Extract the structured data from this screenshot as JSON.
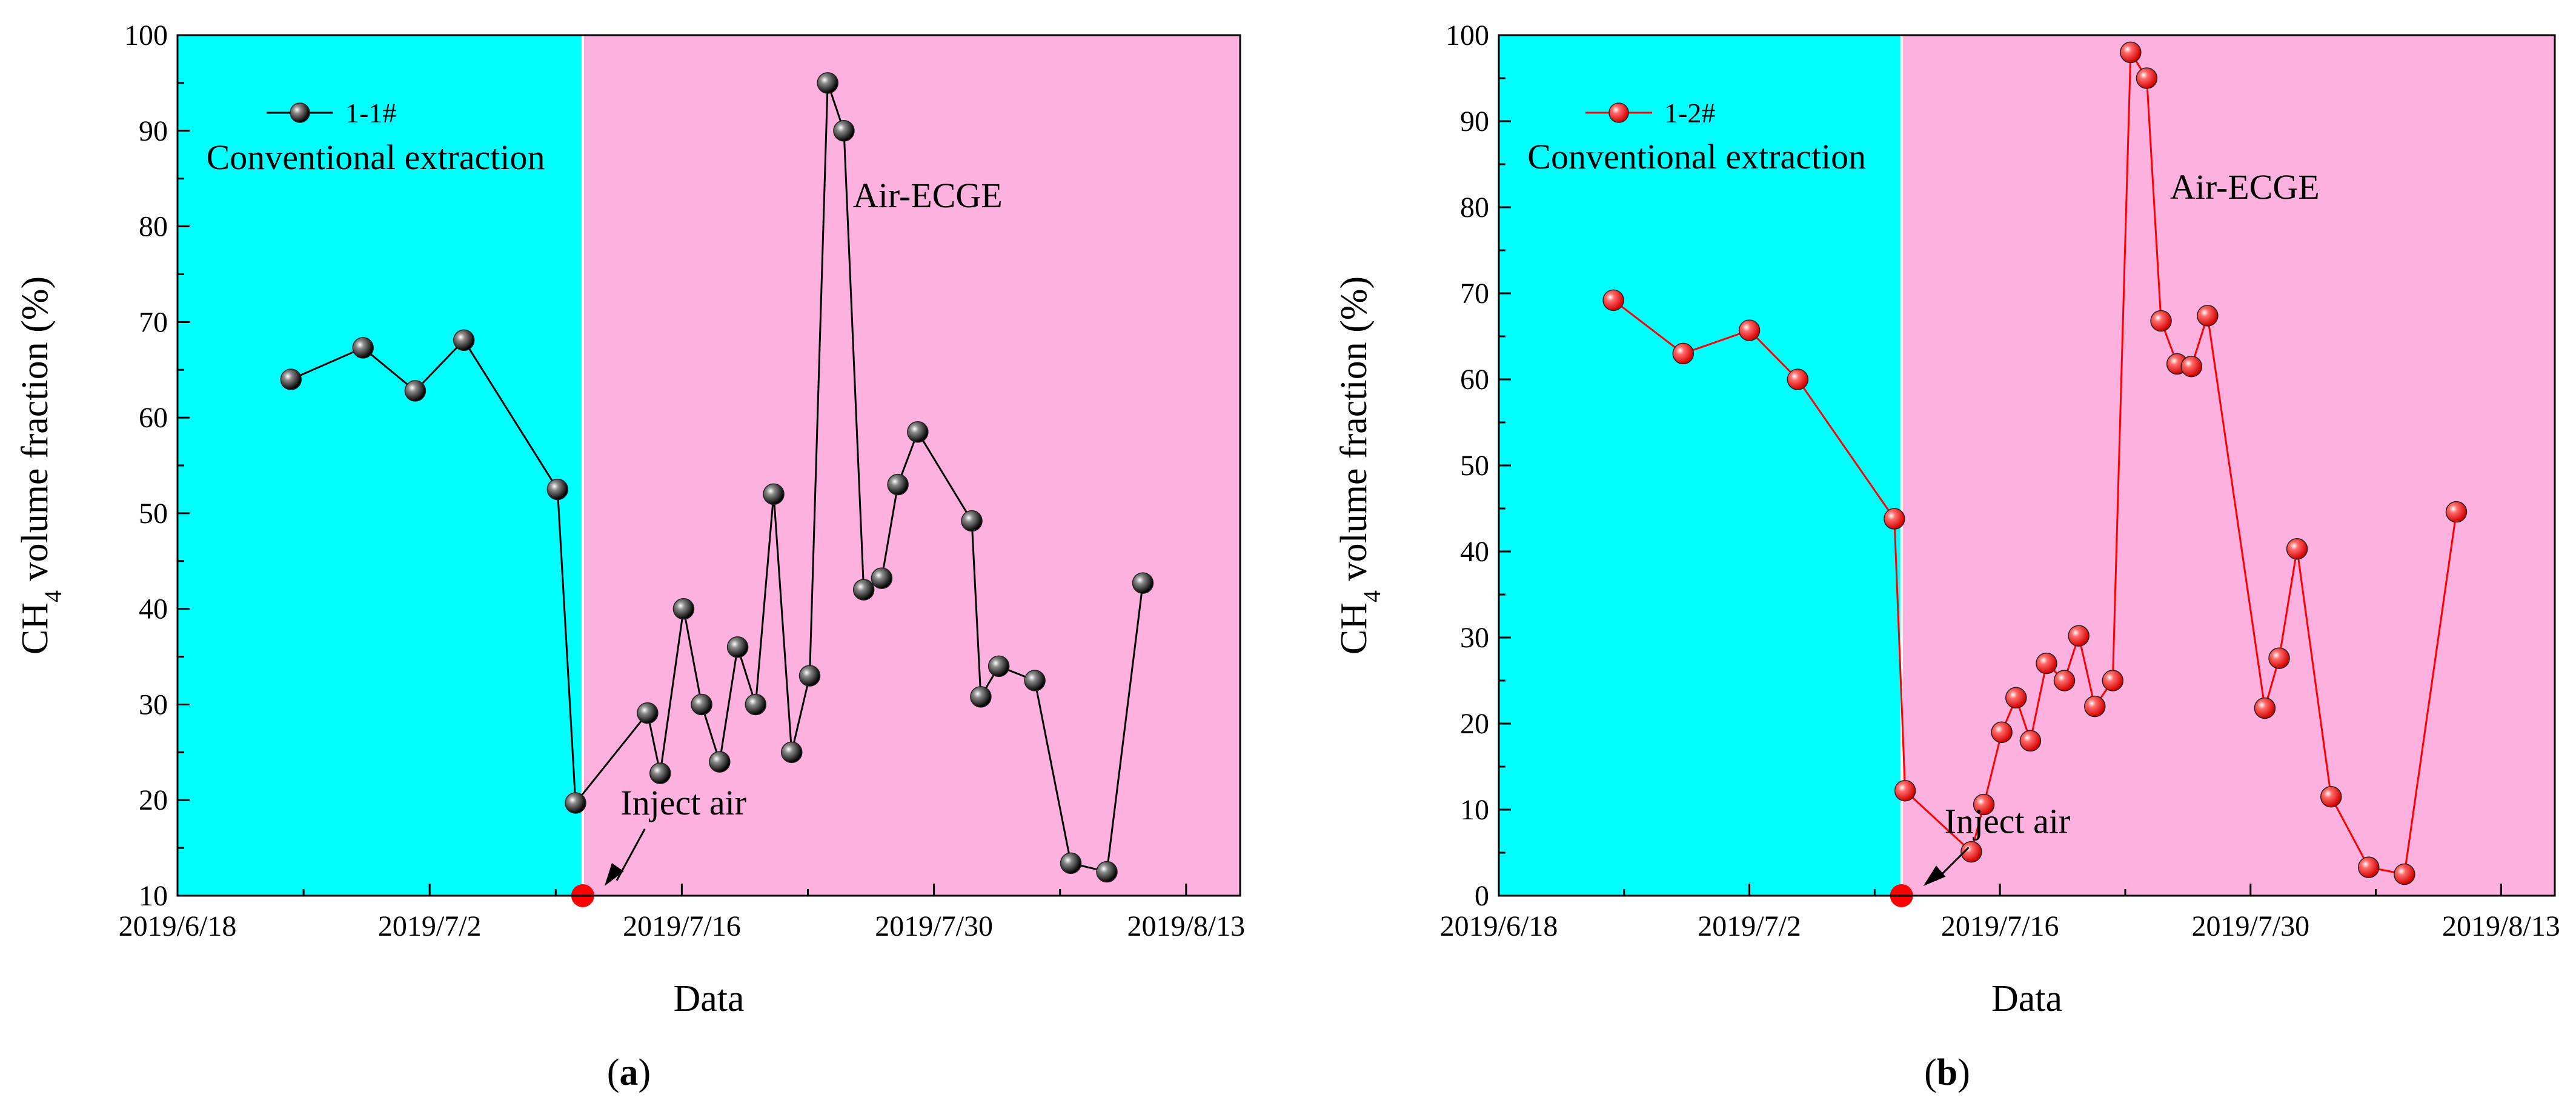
{
  "colors": {
    "conventional_region": "#00FFFF",
    "ecge_region": "#FDB1DF",
    "series_a": "#000000",
    "series_b": "#FF0000",
    "inject_marker": "#FF0000"
  },
  "chart_data": [
    {
      "type": "line",
      "panel_label": "a",
      "xlabel": "Data",
      "ylabel": "CH4 volume fraction (%)",
      "ylabel_main": "CH",
      "ylabel_sub": "4",
      "ylabel_rest": " volume fraction (%)",
      "x_start": "2019-06-18",
      "xlim_days": [
        0,
        59
      ],
      "ylim": [
        10,
        100
      ],
      "y_ticks": [
        10,
        20,
        30,
        40,
        50,
        60,
        70,
        80,
        90,
        100
      ],
      "x_ticks": [
        {
          "label": "2019/6/18",
          "day": 0
        },
        {
          "label": "2019/7/2",
          "day": 14
        },
        {
          "label": "2019/7/16",
          "day": 28
        },
        {
          "label": "2019/7/30",
          "day": 42
        },
        {
          "label": "2019/8/13",
          "day": 56
        }
      ],
      "regions": [
        {
          "label": "Conventional extraction",
          "from_day": 0,
          "to_day": 22.5,
          "color": "conventional_region"
        },
        {
          "label": "Air-ECGE",
          "from_day": 22.5,
          "to_day": 59,
          "color": "ecge_region"
        }
      ],
      "region_label_positions": [
        [
          1.6,
          86
        ],
        [
          37.5,
          82
        ]
      ],
      "annotation": {
        "text": "Inject air",
        "day": 22.5,
        "value": 10,
        "text_at": [
          24.6,
          18.5
        ]
      },
      "series": [
        {
          "name": "1-1#",
          "color": "series_a",
          "points": [
            [
              6.3,
              64
            ],
            [
              10.3,
              67.3
            ],
            [
              13.2,
              62.8
            ],
            [
              15.9,
              68.1
            ],
            [
              21.1,
              52.5
            ],
            [
              22.1,
              19.7
            ],
            [
              26.1,
              29.1
            ],
            [
              26.8,
              22.8
            ],
            [
              28.1,
              40.0
            ],
            [
              29.1,
              30.0
            ],
            [
              30.1,
              24.0
            ],
            [
              31.1,
              36.0
            ],
            [
              32.1,
              30.0
            ],
            [
              33.1,
              52.0
            ],
            [
              34.1,
              25.0
            ],
            [
              35.1,
              33.0
            ],
            [
              36.1,
              95.0
            ],
            [
              37.0,
              90.0
            ],
            [
              38.1,
              42.0
            ],
            [
              39.1,
              43.2
            ],
            [
              40.0,
              53.0
            ],
            [
              41.1,
              58.5
            ],
            [
              44.1,
              49.2
            ],
            [
              44.6,
              30.8
            ],
            [
              45.6,
              34.0
            ],
            [
              47.6,
              32.5
            ],
            [
              49.6,
              13.4
            ],
            [
              51.6,
              12.5
            ],
            [
              53.6,
              42.7
            ]
          ]
        }
      ]
    },
    {
      "type": "line",
      "panel_label": "b",
      "xlabel": "Data",
      "ylabel": "CH4 volume fraction (%)",
      "ylabel_main": "CH",
      "ylabel_sub": "4",
      "ylabel_rest": " volume fraction (%)",
      "x_start": "2019-06-18",
      "xlim_days": [
        0,
        59
      ],
      "ylim": [
        0,
        100
      ],
      "y_ticks": [
        0,
        10,
        20,
        30,
        40,
        50,
        60,
        70,
        80,
        90,
        100
      ],
      "x_ticks": [
        {
          "label": "2019/6/18",
          "day": 0
        },
        {
          "label": "2019/7/2",
          "day": 14
        },
        {
          "label": "2019/7/16",
          "day": 28
        },
        {
          "label": "2019/7/30",
          "day": 42
        },
        {
          "label": "2019/8/13",
          "day": 56
        }
      ],
      "regions": [
        {
          "label": "Conventional extraction",
          "from_day": 0,
          "to_day": 22.5,
          "color": "conventional_region"
        },
        {
          "label": "Air-ECGE",
          "from_day": 22.5,
          "to_day": 59,
          "color": "ecge_region"
        }
      ],
      "region_label_positions": [
        [
          1.6,
          84.5
        ],
        [
          37.5,
          81
        ]
      ],
      "annotation": {
        "text": "Inject air",
        "day": 22.5,
        "value": 0,
        "text_at": [
          24.9,
          7.3
        ]
      },
      "series": [
        {
          "name": "1-2#",
          "color": "series_b",
          "points": [
            [
              6.4,
              69.2
            ],
            [
              10.3,
              63.0
            ],
            [
              14.0,
              65.7
            ],
            [
              16.7,
              60.0
            ],
            [
              22.1,
              43.8
            ],
            [
              22.7,
              12.2
            ],
            [
              26.4,
              5.1
            ],
            [
              27.1,
              10.6
            ],
            [
              28.1,
              19.0
            ],
            [
              28.9,
              23.0
            ],
            [
              29.7,
              18.0
            ],
            [
              30.6,
              27.0
            ],
            [
              31.6,
              25.0
            ],
            [
              32.4,
              30.2
            ],
            [
              33.3,
              22.0
            ],
            [
              34.3,
              25.0
            ],
            [
              35.3,
              98.0
            ],
            [
              36.2,
              95.0
            ],
            [
              37.0,
              66.8
            ],
            [
              37.9,
              61.8
            ],
            [
              38.7,
              61.5
            ],
            [
              39.6,
              67.4
            ],
            [
              42.8,
              21.8
            ],
            [
              43.6,
              27.6
            ],
            [
              44.6,
              40.3
            ],
            [
              46.5,
              11.5
            ],
            [
              48.6,
              3.3
            ],
            [
              50.6,
              2.5
            ],
            [
              53.5,
              44.6
            ]
          ]
        }
      ]
    }
  ]
}
